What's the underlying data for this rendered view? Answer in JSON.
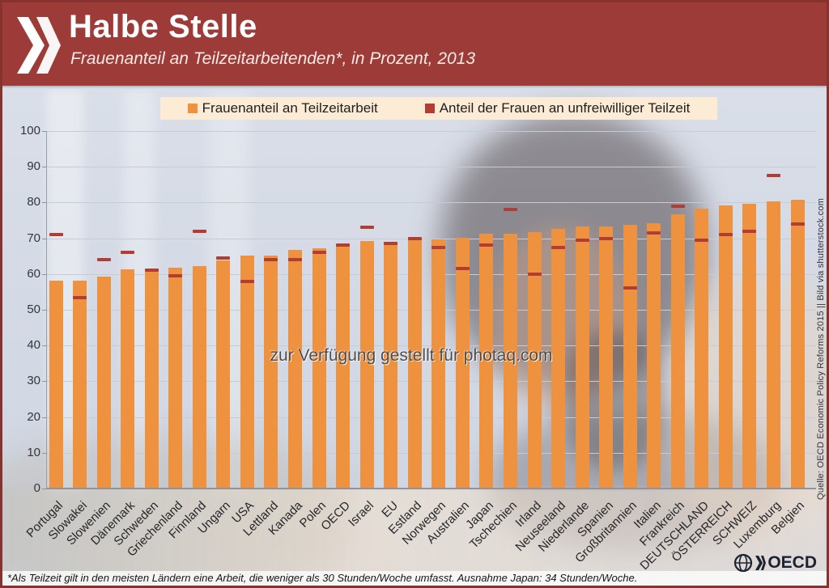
{
  "header": {
    "title": "Halbe Stelle",
    "subtitle": "Frauenanteil an Teilzeitarbeitenden*, in Prozent,  2013",
    "brand_color": "#9d3b38"
  },
  "legend": {
    "items": [
      {
        "label": "Frauenanteil an Teilzeitarbeit",
        "color": "#ef9240",
        "type": "bar"
      },
      {
        "label": "Anteil der Frauen an unfreiwilliger Teilzeit",
        "color": "#b43d33",
        "type": "dash"
      }
    ]
  },
  "chart_data": {
    "type": "bar",
    "title": "Frauenanteil an Teilzeitarbeitenden, in Prozent, 2013",
    "categories": [
      "Portugal",
      "Slowakei",
      "Slowenien",
      "Dänemark",
      "Schweden",
      "Griechenland",
      "Finnland",
      "Ungarn",
      "USA",
      "Lettland",
      "Kanada",
      "Polen",
      "OECD",
      "Israel",
      "EU",
      "Estland",
      "Norwegen",
      "Australien",
      "Japan",
      "Tschechien",
      "Irland",
      "Neuseeland",
      "Niederlande",
      "Spanien",
      "Großbritannien",
      "Italien",
      "Frankreich",
      "DEUTSCHLAND",
      "ÖSTERREICH",
      "SCHWEIZ",
      "Luxemburg",
      "Belgien"
    ],
    "series": [
      {
        "name": "Frauenanteil an Teilzeitarbeit",
        "type": "bar",
        "color": "#ef9240",
        "values": [
          58,
          58,
          59,
          61,
          61,
          61.5,
          62,
          63.5,
          65,
          65,
          66.5,
          67,
          68,
          69,
          68.5,
          69.5,
          69.5,
          70,
          71,
          71,
          71.5,
          72.5,
          73,
          73,
          73.5,
          74,
          76.5,
          78,
          79,
          79.5,
          80,
          80.5
        ]
      },
      {
        "name": "Anteil der Frauen an unfreiwilliger Teilzeit",
        "type": "tick",
        "color": "#b43d33",
        "values": [
          71,
          53.5,
          64,
          66,
          61,
          59.5,
          72,
          64.5,
          58,
          64,
          64,
          66,
          68,
          73,
          68.5,
          70,
          67.5,
          61.5,
          68,
          78,
          60,
          67.5,
          69.5,
          70,
          56,
          71.5,
          79,
          69.5,
          71,
          72,
          87.5,
          74
        ]
      }
    ],
    "ylim": [
      0,
      100
    ],
    "ytick_step": 10,
    "grid": true,
    "legend_position": "top",
    "xlabel": "",
    "ylabel": ""
  },
  "watermark": "zur Verfügung gestellt für photaq.com",
  "credit": "Quelle: OECD Economic Policy Reforms 2015 || Bild via shutterstock.com",
  "footnote": "*Als Teilzeit gilt in den meisten Ländern eine Arbeit, die weniger als 30 Stunden/Woche umfasst. Ausnahme Japan: 34 Stunden/Woche.",
  "logo": {
    "text": "OECD"
  }
}
